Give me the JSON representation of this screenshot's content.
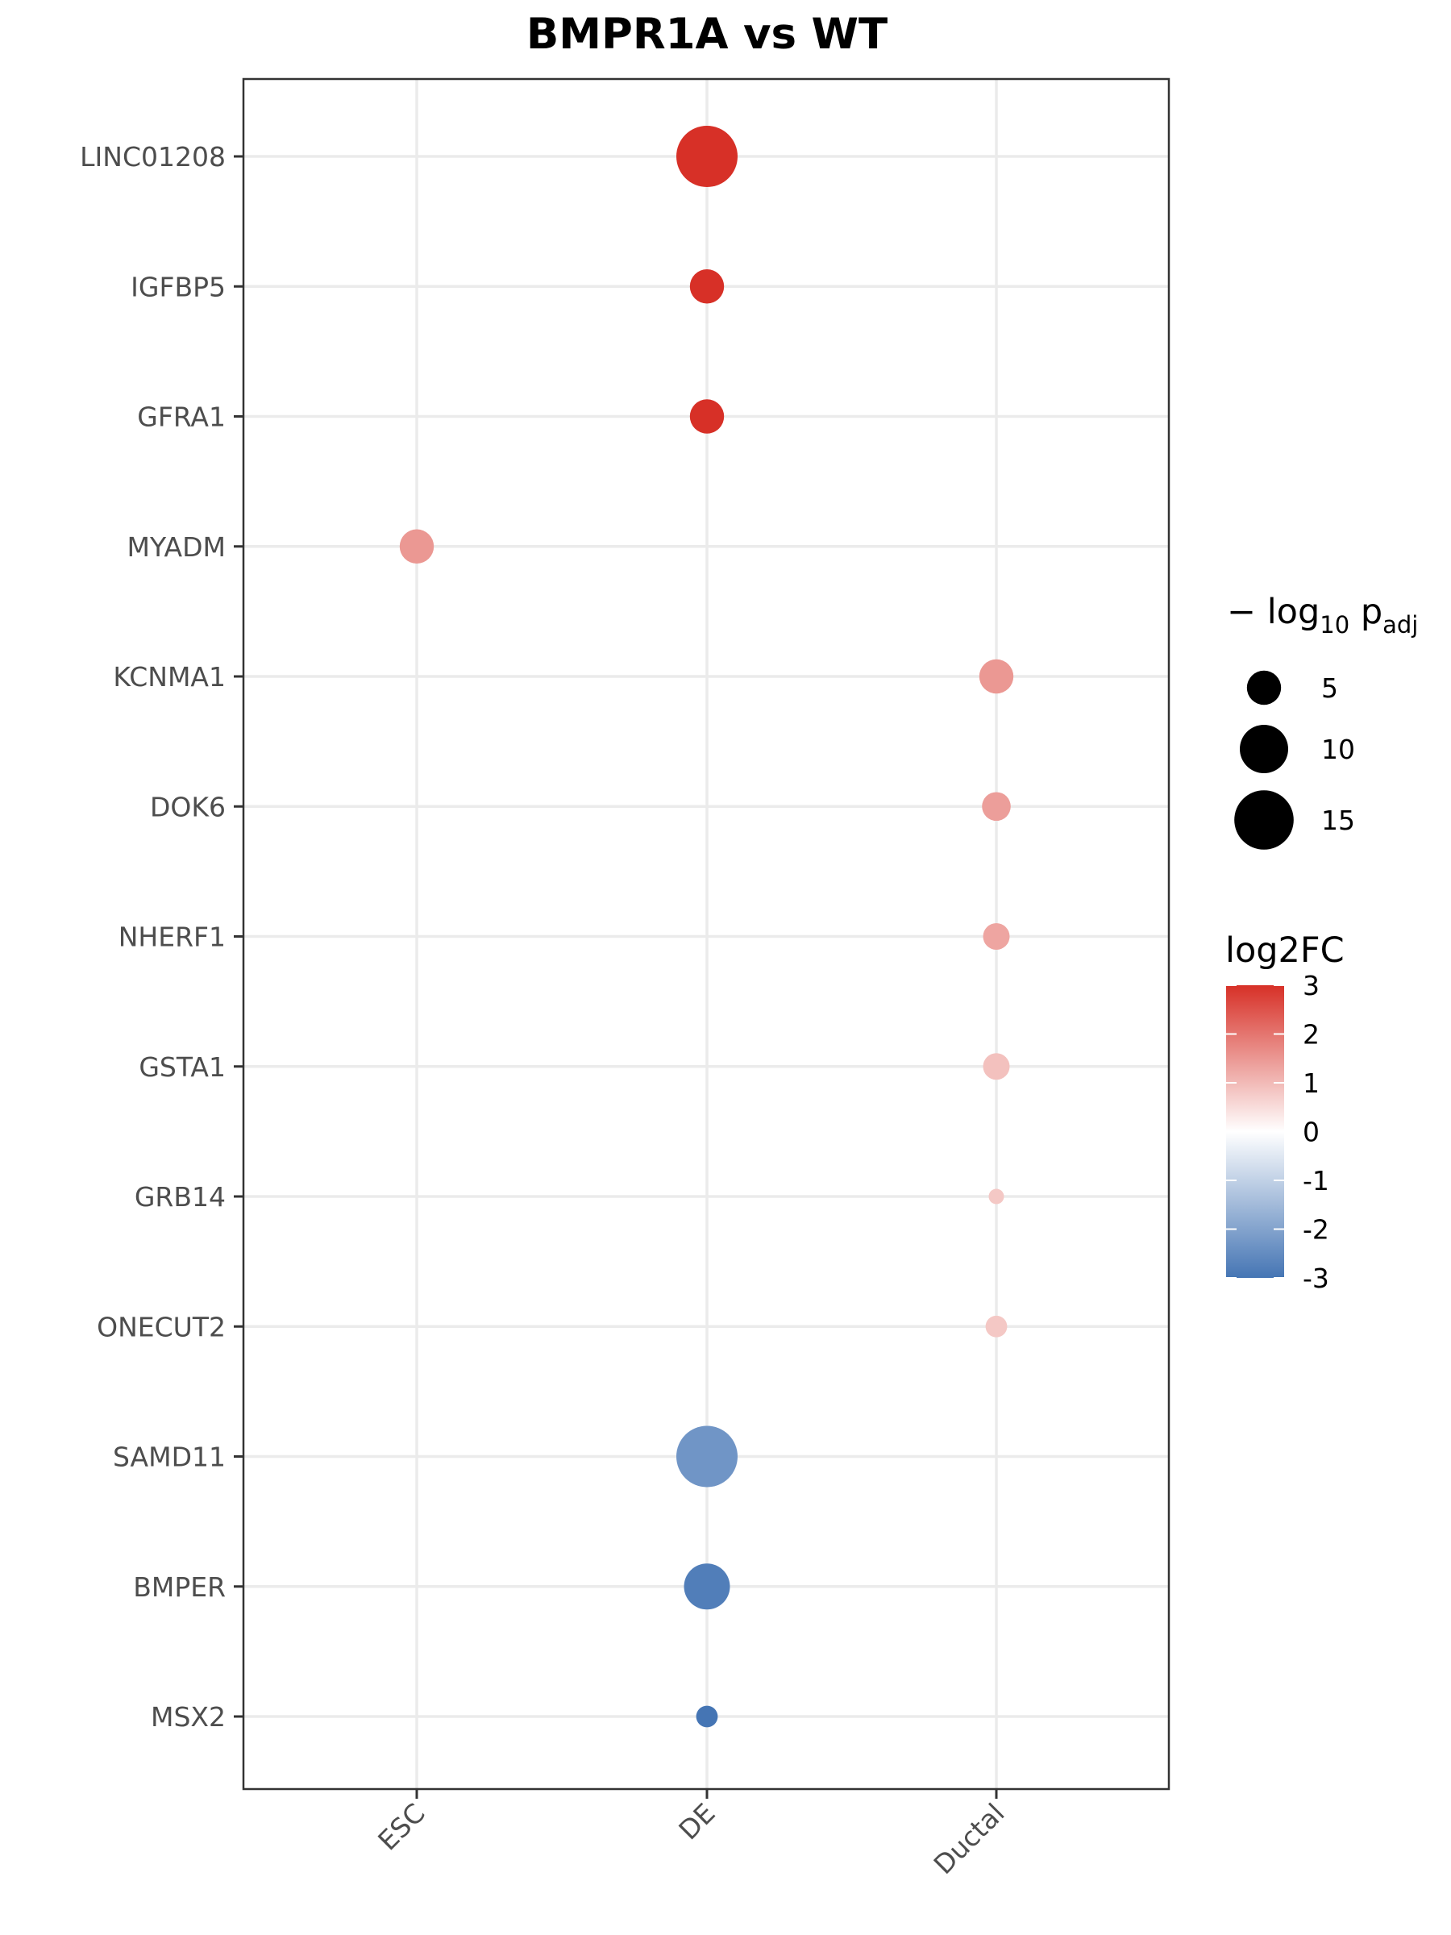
{
  "chart_data": {
    "type": "scatter",
    "title": "BMPR1A vs WT",
    "x_categories": [
      "ESC",
      "DE",
      "Ductal"
    ],
    "y_categories": [
      "LINC01208",
      "IGFBP5",
      "GFRA1",
      "MYADM",
      "KCNMA1",
      "DOK6",
      "NHERF1",
      "GSTA1",
      "GRB14",
      "ONECUT2",
      "SAMD11",
      "BMPER",
      "MSX2"
    ],
    "points": [
      {
        "gene": "LINC01208",
        "x": "DE",
        "log2FC": 3.0,
        "neg_log10_padj": 16
      },
      {
        "gene": "IGFBP5",
        "x": "DE",
        "log2FC": 3.0,
        "neg_log10_padj": 5
      },
      {
        "gene": "GFRA1",
        "x": "DE",
        "log2FC": 3.0,
        "neg_log10_padj": 5
      },
      {
        "gene": "MYADM",
        "x": "ESC",
        "log2FC": 1.5,
        "neg_log10_padj": 5
      },
      {
        "gene": "KCNMA1",
        "x": "Ductal",
        "log2FC": 1.5,
        "neg_log10_padj": 5
      },
      {
        "gene": "DOK6",
        "x": "Ductal",
        "log2FC": 1.4,
        "neg_log10_padj": 3.5
      },
      {
        "gene": "NHERF1",
        "x": "Ductal",
        "log2FC": 1.3,
        "neg_log10_padj": 3
      },
      {
        "gene": "GSTA1",
        "x": "Ductal",
        "log2FC": 0.9,
        "neg_log10_padj": 3
      },
      {
        "gene": "GRB14",
        "x": "Ductal",
        "log2FC": 0.8,
        "neg_log10_padj": 1
      },
      {
        "gene": "ONECUT2",
        "x": "Ductal",
        "log2FC": 0.8,
        "neg_log10_padj": 2
      },
      {
        "gene": "SAMD11",
        "x": "DE",
        "log2FC": -2.3,
        "neg_log10_padj": 16
      },
      {
        "gene": "BMPER",
        "x": "DE",
        "log2FC": -2.8,
        "neg_log10_padj": 9
      },
      {
        "gene": "MSX2",
        "x": "DE",
        "log2FC": -3.0,
        "neg_log10_padj": 2
      }
    ],
    "size_legend": {
      "title_main": "− log",
      "title_sub1": "10",
      "title_mid": " p",
      "title_sub2": "adj",
      "breaks": [
        5,
        10,
        15
      ],
      "labels": [
        "5",
        "10",
        "15"
      ]
    },
    "color_legend": {
      "title": "log2FC",
      "limits": [
        -3,
        3
      ],
      "breaks": [
        3,
        2,
        1,
        0,
        -1,
        -2,
        -3
      ],
      "labels": [
        "3",
        "2",
        "1",
        "0",
        "-1",
        "-2",
        "-3"
      ],
      "low_color": "#4575b4",
      "mid_color": "#ffffff",
      "high_color": "#d73027"
    },
    "grid": true,
    "legend_position": "right"
  }
}
